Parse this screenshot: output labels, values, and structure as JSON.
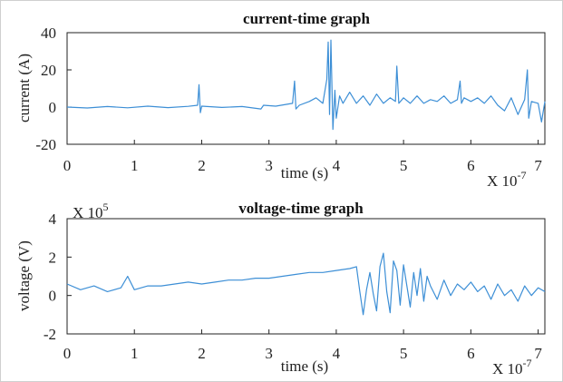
{
  "chart_data": [
    {
      "type": "line",
      "title": "current-time graph",
      "xlabel": "time (s)",
      "ylabel": "current (A)",
      "x_scale_note": "X 10",
      "x_scale_exponent": "-7",
      "xlim": [
        0,
        7.1
      ],
      "ylim": [
        -20,
        40
      ],
      "xticks": [
        0,
        1,
        2,
        3,
        4,
        5,
        6,
        7
      ],
      "yticks": [
        -20,
        0,
        20,
        40
      ],
      "ytick_labels": [
        "-20",
        "0",
        "20",
        "40"
      ],
      "grid": false,
      "line_color": "#3d8fd6",
      "series": [
        {
          "x": [
            0,
            0.3,
            0.6,
            0.9,
            1.2,
            1.5,
            1.8,
            1.94,
            1.96,
            1.98,
            2.0,
            2.3,
            2.6,
            2.88,
            2.92,
            3.1,
            3.35,
            3.38,
            3.4,
            3.45,
            3.6,
            3.7,
            3.8,
            3.86,
            3.88,
            3.9,
            3.92,
            3.95,
            3.98,
            4.0,
            4.05,
            4.1,
            4.2,
            4.3,
            4.4,
            4.5,
            4.6,
            4.7,
            4.8,
            4.88,
            4.9,
            4.93,
            5.0,
            5.1,
            5.2,
            5.3,
            5.4,
            5.5,
            5.6,
            5.7,
            5.8,
            5.84,
            5.86,
            5.9,
            6.0,
            6.1,
            6.2,
            6.3,
            6.4,
            6.5,
            6.6,
            6.7,
            6.8,
            6.84,
            6.86,
            6.9,
            7.0,
            7.05,
            7.1
          ],
          "y": [
            0,
            -0.5,
            0.3,
            -0.4,
            0.5,
            -0.3,
            0.4,
            1,
            12,
            -3,
            0.5,
            -0.2,
            0.3,
            -1,
            1,
            0.5,
            2,
            14,
            -1,
            1,
            3,
            5,
            2,
            15,
            35,
            -4,
            36,
            -12,
            9,
            -6,
            6,
            2,
            8,
            2,
            6,
            1,
            7,
            2,
            5,
            3,
            22,
            2,
            5,
            2,
            6,
            2,
            4,
            3,
            6,
            2,
            4,
            14,
            2,
            5,
            3,
            5,
            2,
            6,
            1,
            -2,
            5,
            -4,
            4,
            20,
            -6,
            3,
            2,
            -8,
            3
          ]
        }
      ]
    },
    {
      "type": "line",
      "title": "voltage-time graph",
      "xlabel": "time (s)",
      "ylabel": "voltage (V)",
      "x_scale_note": "X 10",
      "x_scale_exponent": "-7",
      "y_scale_note": "X 10",
      "y_scale_exponent": "5",
      "xlim": [
        0,
        7.1
      ],
      "ylim": [
        -2,
        4
      ],
      "xticks": [
        0,
        1,
        2,
        3,
        4,
        5,
        6,
        7
      ],
      "yticks": [
        -2,
        0,
        2,
        4
      ],
      "ytick_labels": [
        "-2",
        "0",
        "2",
        "4"
      ],
      "grid": false,
      "line_color": "#3d8fd6",
      "series": [
        {
          "x": [
            0,
            0.2,
            0.4,
            0.6,
            0.8,
            0.9,
            1.0,
            1.2,
            1.4,
            1.6,
            1.8,
            2.0,
            2.2,
            2.4,
            2.6,
            2.8,
            3.0,
            3.2,
            3.4,
            3.6,
            3.8,
            4.0,
            4.2,
            4.3,
            4.35,
            4.4,
            4.45,
            4.5,
            4.55,
            4.6,
            4.65,
            4.7,
            4.75,
            4.8,
            4.85,
            4.9,
            4.95,
            5.0,
            5.05,
            5.1,
            5.15,
            5.2,
            5.25,
            5.3,
            5.35,
            5.4,
            5.5,
            5.6,
            5.7,
            5.8,
            5.9,
            6.0,
            6.1,
            6.2,
            6.3,
            6.4,
            6.5,
            6.6,
            6.7,
            6.8,
            6.9,
            7.0,
            7.1
          ],
          "y": [
            0.6,
            0.3,
            0.5,
            0.2,
            0.4,
            1.0,
            0.3,
            0.5,
            0.5,
            0.6,
            0.7,
            0.6,
            0.7,
            0.8,
            0.8,
            0.9,
            0.9,
            1.0,
            1.1,
            1.2,
            1.2,
            1.3,
            1.4,
            1.5,
            0.2,
            -1.0,
            0.3,
            1.2,
            0.1,
            -0.8,
            1.5,
            2.2,
            0.2,
            -0.9,
            1.8,
            1.3,
            -0.5,
            1.6,
            0.5,
            -0.6,
            1.2,
            0.0,
            1.4,
            -0.3,
            1.0,
            0.5,
            -0.2,
            0.8,
            0.0,
            0.6,
            0.3,
            0.7,
            0.2,
            0.5,
            -0.2,
            0.6,
            0.0,
            0.3,
            -0.3,
            0.5,
            0.0,
            0.4,
            0.2
          ]
        }
      ]
    }
  ]
}
